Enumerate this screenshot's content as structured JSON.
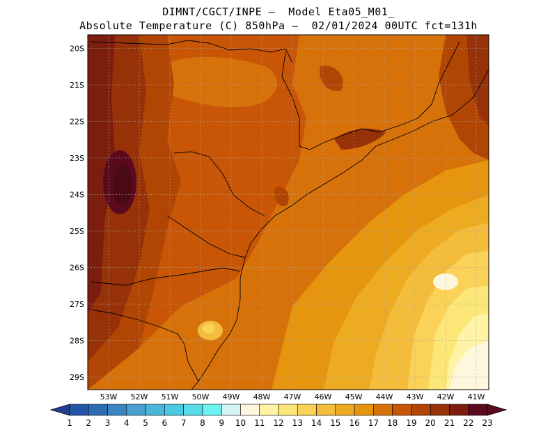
{
  "header": {
    "line1": "DIMNT/CGCT/INPE –  Model Eta05_M01_",
    "line2": "Absolute Temperature (C) 850hPa –  02/01/2024 00UTC fct=131h"
  },
  "map": {
    "lat_labels": [
      "20S",
      "21S",
      "22S",
      "23S",
      "24S",
      "25S",
      "26S",
      "27S",
      "28S",
      "29S"
    ],
    "lon_labels": [
      "53W",
      "52W",
      "51W",
      "50W",
      "49W",
      "48W",
      "47W",
      "46W",
      "45W",
      "44W",
      "43W",
      "42W",
      "41W"
    ]
  },
  "colorbar": {
    "labels": [
      "1",
      "2",
      "3",
      "4",
      "5",
      "6",
      "7",
      "8",
      "9",
      "10",
      "11",
      "12",
      "13",
      "14",
      "15",
      "16",
      "17",
      "18",
      "19",
      "20",
      "21",
      "22",
      "23"
    ],
    "colors": [
      "#1f3f8f",
      "#2356a6",
      "#2e6db4",
      "#3a85c2",
      "#4a9ed0",
      "#4cb6d9",
      "#49c9e2",
      "#56dbe9",
      "#6ef3f3",
      "#d4f3f7",
      "#fff6de",
      "#fff3a6",
      "#fde678",
      "#f9d257",
      "#f3bd3b",
      "#ecab20",
      "#e6950f",
      "#d7720b",
      "#c85606",
      "#b14504",
      "#963108",
      "#7c1e0e",
      "#5b0a1e"
    ]
  }
}
